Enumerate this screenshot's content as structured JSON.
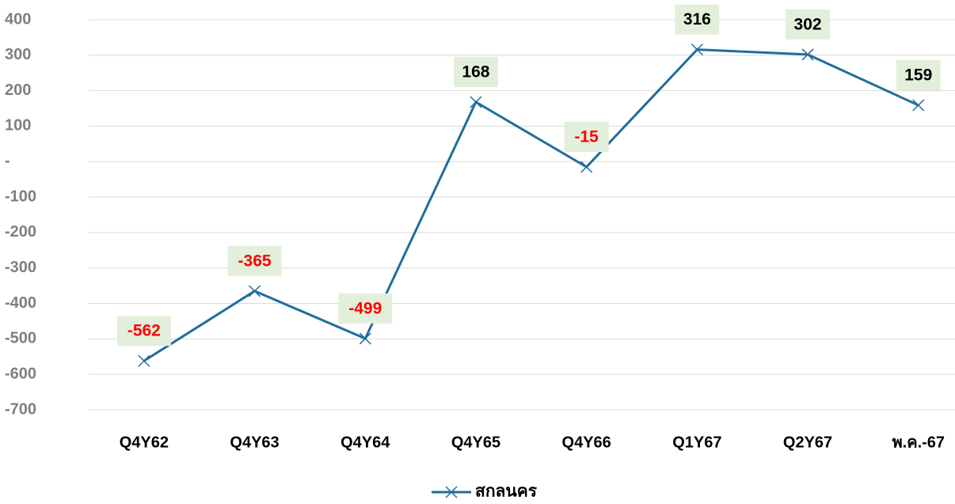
{
  "chart_data": {
    "type": "line",
    "categories": [
      "Q4Y62",
      "Q4Y63",
      "Q4Y64",
      "Q4Y65",
      "Q4Y66",
      "Q1Y67",
      "Q2Y67",
      "พ.ค.-67"
    ],
    "series": [
      {
        "name": "สกลนคร",
        "color": "#1f6e9c",
        "values": [
          -562,
          -365,
          -499,
          168,
          -15,
          316,
          302,
          159
        ]
      }
    ],
    "ylim": [
      -700,
      400
    ],
    "yticks": [
      -700,
      -600,
      -500,
      -400,
      -300,
      -200,
      -100,
      {
        "value": 0,
        "label": "-"
      },
      100,
      200,
      300,
      400
    ],
    "grid": true,
    "label_color": "#000000",
    "negative_label_color": "#ff0000",
    "label_background": "#e2efda",
    "legend": "bottom"
  }
}
